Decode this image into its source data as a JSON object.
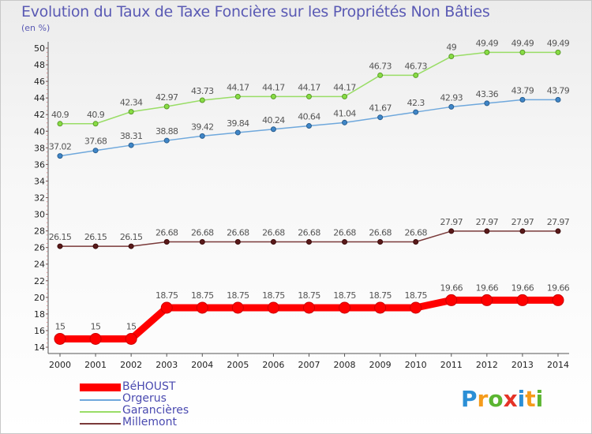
{
  "title": "Evolution du Taux de Taxe Foncière sur les Propriétés Non Bâties",
  "unit_label": "(en %)",
  "brand": [
    "P",
    "r",
    "o",
    "x",
    "i",
    "t",
    "i"
  ],
  "brand_colors": [
    "#2b8fd6",
    "#f59b1b",
    "#5bb531",
    "#e53327",
    "#2b8fd6",
    "#f59b1b",
    "#5bb531"
  ],
  "chart_data": {
    "type": "line",
    "title": "Evolution du Taux de Taxe Foncière sur les Propriétés Non Bâties",
    "ylabel": "(en %)",
    "xlabel": "",
    "categories": [
      "2000",
      "2001",
      "2002",
      "2003",
      "2004",
      "2005",
      "2006",
      "2007",
      "2008",
      "2009",
      "2010",
      "2011",
      "2012",
      "2013",
      "2014"
    ],
    "ylim": [
      14,
      50
    ],
    "yticks": [
      14,
      16,
      18,
      20,
      22,
      24,
      26,
      28,
      30,
      32,
      34,
      36,
      38,
      40,
      42,
      44,
      46,
      48,
      50
    ],
    "grid": false,
    "legend_position": "bottom-left",
    "series": [
      {
        "name": "BéHOUST",
        "color": "#ff0000",
        "values": [
          15,
          15,
          15,
          18.75,
          18.75,
          18.75,
          18.75,
          18.75,
          18.75,
          18.75,
          18.75,
          19.66,
          19.66,
          19.66,
          19.66
        ],
        "labels": [
          "15",
          "15",
          "15",
          "18.75",
          "18.75",
          "18.75",
          "18.75",
          "18.75",
          "18.75",
          "18.75",
          "18.75",
          "19.66",
          "19.66",
          "19.66",
          "19.66"
        ]
      },
      {
        "name": "Orgerus",
        "color": "#6fa8dc",
        "values": [
          37.02,
          37.68,
          38.31,
          38.88,
          39.42,
          39.84,
          40.24,
          40.64,
          41.04,
          41.67,
          42.3,
          42.93,
          43.36,
          43.79,
          43.79
        ],
        "labels": [
          "37.02",
          "37.68",
          "38.31",
          "38.88",
          "39.42",
          "39.84",
          "40.24",
          "40.64",
          "41.04",
          "41.67",
          "42.3",
          "42.93",
          "43.36",
          "43.79",
          "43.79"
        ]
      },
      {
        "name": "Garancières",
        "color": "#99dd66",
        "values": [
          40.9,
          40.9,
          42.34,
          42.97,
          43.73,
          44.17,
          44.17,
          44.17,
          44.17,
          46.73,
          46.73,
          49,
          49.49,
          49.49,
          49.49
        ],
        "labels": [
          "40.9",
          "40.9",
          "42.34",
          "42.97",
          "43.73",
          "44.17",
          "44.17",
          "44.17",
          "44.17",
          "46.73",
          "46.73",
          "49",
          "49.49",
          "49.49",
          "49.49"
        ]
      },
      {
        "name": "Millemont",
        "color": "#7a3a3a",
        "values": [
          26.15,
          26.15,
          26.15,
          26.68,
          26.68,
          26.68,
          26.68,
          26.68,
          26.68,
          26.68,
          26.68,
          27.97,
          27.97,
          27.97,
          27.97
        ],
        "labels": [
          "26.15",
          "26.15",
          "26.15",
          "26.68",
          "26.68",
          "26.68",
          "26.68",
          "26.68",
          "26.68",
          "26.68",
          "26.68",
          "27.97",
          "27.97",
          "27.97",
          "27.97"
        ]
      }
    ]
  }
}
